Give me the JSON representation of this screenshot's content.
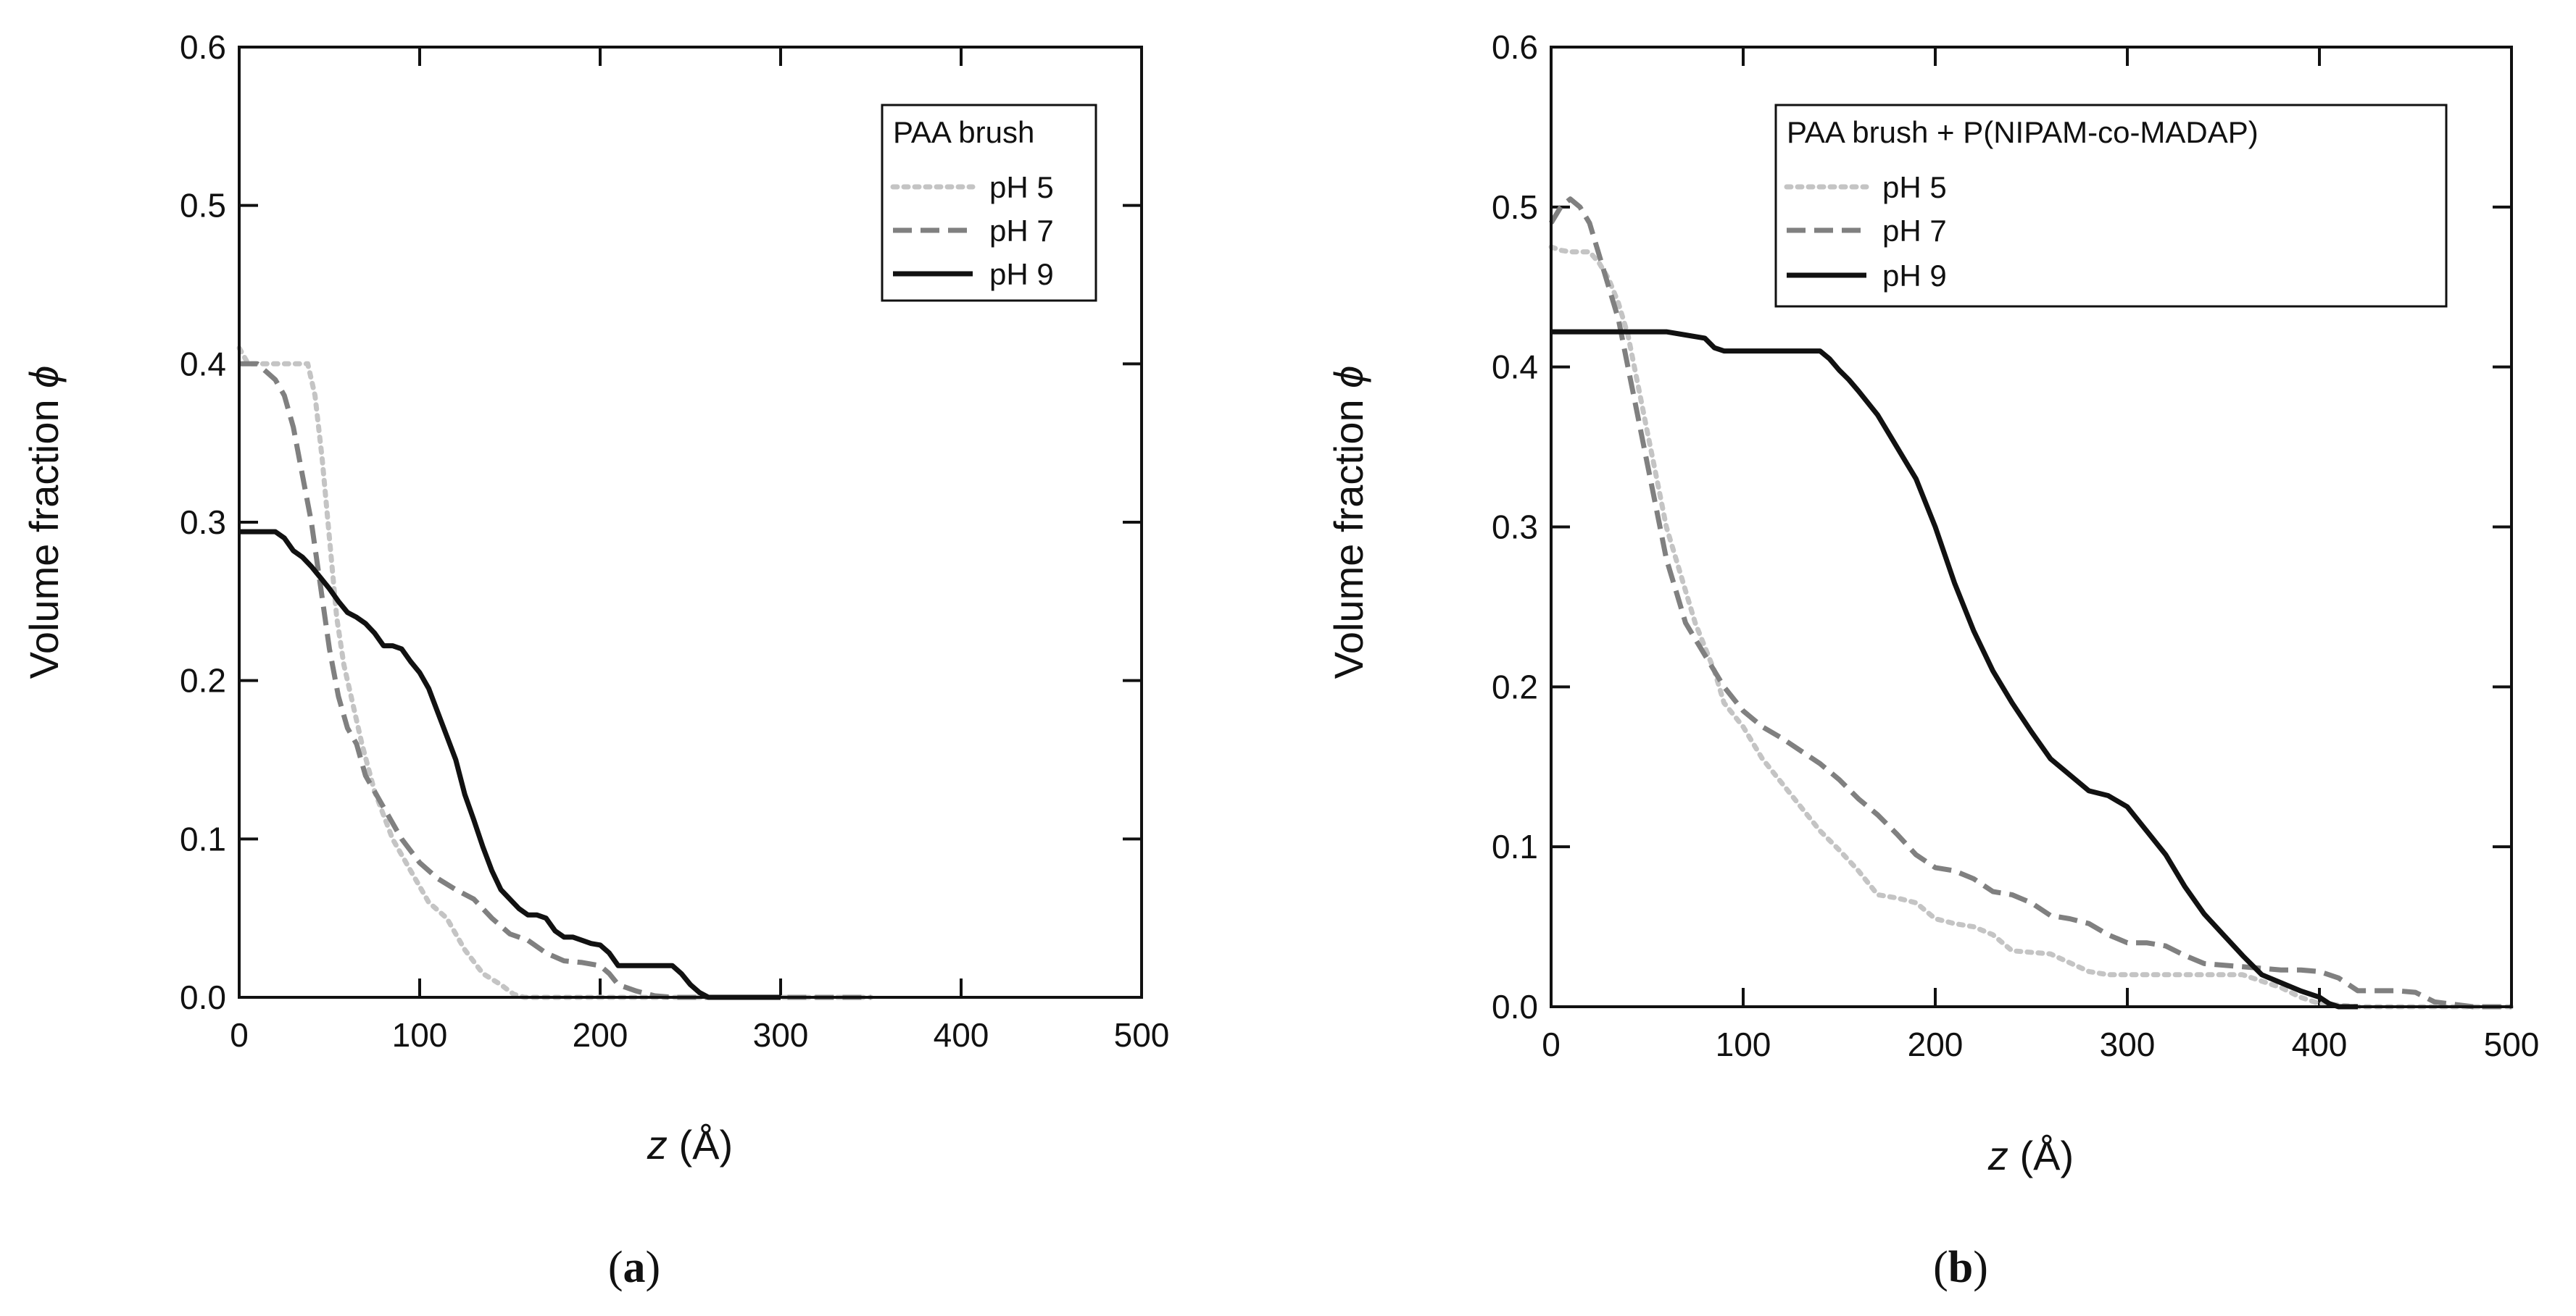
{
  "chart_data": [
    {
      "type": "line",
      "panel_label": "(a)",
      "xlabel_var": "z",
      "xlabel_unit": " (Å)",
      "ylabel": "Volume fraction ",
      "ylabel_symbol": "ϕ",
      "xlim": [
        0,
        500
      ],
      "ylim": [
        0,
        0.6
      ],
      "xticks": [
        0,
        100,
        200,
        300,
        400,
        500
      ],
      "xtick_labels": [
        "0",
        "100",
        "200",
        "300",
        "400",
        "500"
      ],
      "yticks": [
        0,
        0.1,
        0.2,
        0.3,
        0.4,
        0.5,
        0.6
      ],
      "ytick_labels": [
        "0.0",
        "0.1",
        "0.2",
        "0.3",
        "0.4",
        "0.5",
        "0.6"
      ],
      "legend_title": "PAA brush",
      "legend_position": "top-right",
      "series": [
        {
          "name": "pH 5",
          "color": "#c4c4c4",
          "dash": "dotted",
          "x": [
            0,
            5,
            10,
            20,
            30,
            38,
            42,
            46,
            50,
            54,
            58,
            62,
            68,
            75,
            85,
            95,
            105,
            115,
            125,
            135,
            145,
            152,
            158,
            170,
            200,
            250,
            300,
            350
          ],
          "y": [
            0.41,
            0.4,
            0.4,
            0.4,
            0.4,
            0.4,
            0.38,
            0.34,
            0.29,
            0.24,
            0.21,
            0.19,
            0.16,
            0.13,
            0.1,
            0.08,
            0.06,
            0.05,
            0.03,
            0.015,
            0.008,
            0.002,
            0,
            0,
            0,
            0,
            0,
            0
          ]
        },
        {
          "name": "pH 7",
          "color": "#808080",
          "dash": "dashed",
          "x": [
            0,
            5,
            10,
            15,
            20,
            25,
            30,
            35,
            40,
            45,
            50,
            55,
            60,
            65,
            70,
            80,
            90,
            100,
            110,
            120,
            130,
            140,
            150,
            160,
            170,
            180,
            190,
            200,
            205,
            210,
            220,
            230,
            240,
            260,
            300,
            350
          ],
          "y": [
            0.4,
            0.4,
            0.4,
            0.395,
            0.39,
            0.38,
            0.36,
            0.33,
            0.3,
            0.26,
            0.22,
            0.19,
            0.17,
            0.16,
            0.14,
            0.12,
            0.1,
            0.085,
            0.075,
            0.068,
            0.062,
            0.05,
            0.04,
            0.036,
            0.028,
            0.023,
            0.022,
            0.02,
            0.015,
            0.008,
            0.004,
            0.001,
            0,
            0,
            0,
            0
          ]
        },
        {
          "name": "pH 9",
          "color": "#111111",
          "dash": "solid",
          "x": [
            0,
            10,
            20,
            25,
            30,
            35,
            40,
            45,
            50,
            55,
            60,
            65,
            70,
            75,
            80,
            85,
            90,
            95,
            100,
            105,
            110,
            115,
            120,
            125,
            130,
            135,
            140,
            145,
            150,
            155,
            160,
            165,
            170,
            175,
            180,
            185,
            190,
            195,
            200,
            205,
            210,
            220,
            230,
            240,
            245,
            250,
            255,
            260,
            270,
            280,
            300
          ],
          "y": [
            0.294,
            0.294,
            0.294,
            0.29,
            0.282,
            0.278,
            0.272,
            0.265,
            0.258,
            0.25,
            0.243,
            0.24,
            0.236,
            0.23,
            0.222,
            0.222,
            0.22,
            0.212,
            0.205,
            0.195,
            0.18,
            0.165,
            0.15,
            0.128,
            0.112,
            0.095,
            0.08,
            0.068,
            0.062,
            0.056,
            0.052,
            0.052,
            0.05,
            0.042,
            0.038,
            0.038,
            0.036,
            0.034,
            0.033,
            0.028,
            0.02,
            0.02,
            0.02,
            0.02,
            0.015,
            0.008,
            0.003,
            0,
            0,
            0,
            0
          ]
        }
      ]
    },
    {
      "type": "line",
      "panel_label": "(b)",
      "xlabel_var": "z",
      "xlabel_unit": " (Å)",
      "ylabel": "Volume fraction ",
      "ylabel_symbol": "ϕ",
      "xlim": [
        0,
        500
      ],
      "ylim": [
        0,
        0.6
      ],
      "xticks": [
        0,
        100,
        200,
        300,
        400,
        500
      ],
      "xtick_labels": [
        "0",
        "100",
        "200",
        "300",
        "400",
        "500"
      ],
      "yticks": [
        0,
        0.1,
        0.2,
        0.3,
        0.4,
        0.5,
        0.6
      ],
      "ytick_labels": [
        "0.0",
        "0.1",
        "0.2",
        "0.3",
        "0.4",
        "0.5",
        "0.6"
      ],
      "legend_title": "PAA brush + P(NIPAM-co-MADAP)",
      "legend_position": "top-right",
      "series": [
        {
          "name": "pH 5",
          "color": "#c4c4c4",
          "dash": "dotted",
          "x": [
            0,
            5,
            10,
            20,
            25,
            30,
            35,
            40,
            45,
            50,
            55,
            60,
            65,
            70,
            75,
            80,
            85,
            90,
            100,
            110,
            120,
            130,
            140,
            150,
            160,
            170,
            180,
            190,
            200,
            210,
            220,
            230,
            240,
            260,
            280,
            290,
            300,
            340,
            360,
            380,
            390,
            400,
            420,
            450,
            500
          ],
          "y": [
            0.475,
            0.473,
            0.472,
            0.472,
            0.465,
            0.455,
            0.44,
            0.42,
            0.39,
            0.36,
            0.33,
            0.3,
            0.28,
            0.26,
            0.24,
            0.225,
            0.21,
            0.19,
            0.175,
            0.155,
            0.14,
            0.125,
            0.11,
            0.098,
            0.085,
            0.07,
            0.068,
            0.065,
            0.055,
            0.052,
            0.05,
            0.045,
            0.035,
            0.033,
            0.022,
            0.02,
            0.02,
            0.02,
            0.02,
            0.012,
            0.006,
            0.002,
            0,
            0,
            0
          ]
        },
        {
          "name": "pH 7",
          "color": "#808080",
          "dash": "dashed",
          "x": [
            0,
            5,
            10,
            15,
            20,
            25,
            30,
            35,
            40,
            45,
            50,
            55,
            60,
            65,
            70,
            80,
            90,
            100,
            110,
            120,
            130,
            140,
            150,
            160,
            170,
            180,
            190,
            200,
            210,
            220,
            230,
            240,
            250,
            260,
            270,
            280,
            290,
            300,
            310,
            320,
            330,
            340,
            360,
            380,
            390,
            400,
            410,
            420,
            440,
            450,
            460,
            480,
            500
          ],
          "y": [
            0.49,
            0.5,
            0.505,
            0.5,
            0.49,
            0.47,
            0.45,
            0.43,
            0.4,
            0.37,
            0.34,
            0.31,
            0.28,
            0.26,
            0.24,
            0.22,
            0.2,
            0.185,
            0.175,
            0.168,
            0.16,
            0.152,
            0.142,
            0.13,
            0.12,
            0.108,
            0.095,
            0.087,
            0.085,
            0.08,
            0.072,
            0.07,
            0.065,
            0.057,
            0.055,
            0.052,
            0.045,
            0.04,
            0.04,
            0.038,
            0.032,
            0.027,
            0.025,
            0.023,
            0.023,
            0.022,
            0.018,
            0.01,
            0.01,
            0.009,
            0.003,
            0,
            0
          ]
        },
        {
          "name": "pH 9",
          "color": "#111111",
          "dash": "solid",
          "x": [
            0,
            20,
            40,
            60,
            70,
            80,
            85,
            90,
            100,
            120,
            130,
            140,
            145,
            150,
            155,
            160,
            170,
            180,
            190,
            200,
            210,
            220,
            230,
            240,
            250,
            260,
            270,
            280,
            290,
            300,
            310,
            320,
            330,
            340,
            350,
            360,
            370,
            380,
            390,
            400,
            405,
            410,
            420
          ],
          "y": [
            0.422,
            0.422,
            0.422,
            0.422,
            0.42,
            0.418,
            0.412,
            0.41,
            0.41,
            0.41,
            0.41,
            0.41,
            0.405,
            0.398,
            0.392,
            0.385,
            0.37,
            0.35,
            0.33,
            0.3,
            0.265,
            0.235,
            0.21,
            0.19,
            0.172,
            0.155,
            0.145,
            0.135,
            0.132,
            0.125,
            0.11,
            0.095,
            0.075,
            0.058,
            0.045,
            0.032,
            0.02,
            0.015,
            0.01,
            0.006,
            0.002,
            0,
            0
          ]
        }
      ]
    }
  ]
}
